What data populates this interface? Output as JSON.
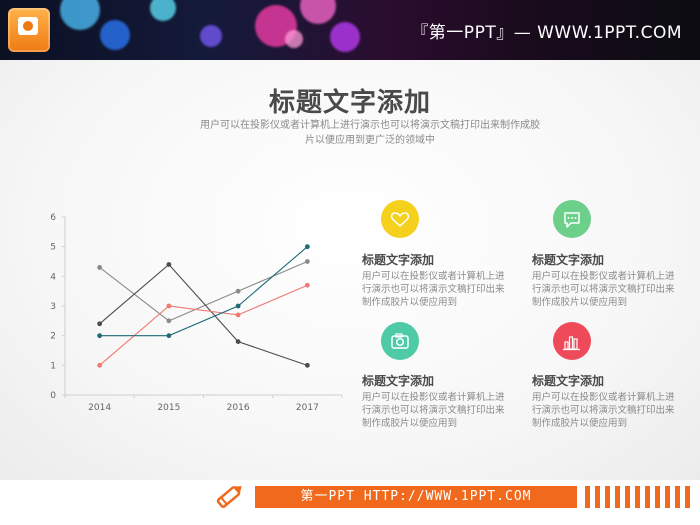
{
  "header": {
    "site_title": "『第一PPT』— WWW.1PPT.COM",
    "logo_icon": "powerpoint-logo-icon"
  },
  "main": {
    "title": "标题文字添加",
    "subtitle": "用户可以在投影仪或者计算机上进行演示也可以将演示文稿打印出来制作成胶片以便应用到更广泛的领域中"
  },
  "chart_data": {
    "type": "line",
    "categories": [
      "2014",
      "2015",
      "2016",
      "2017"
    ],
    "ylim": [
      0,
      6
    ],
    "yticks": [
      "0",
      "1",
      "2",
      "3",
      "4",
      "5",
      "6"
    ],
    "grid": false,
    "legend": "none",
    "series": [
      {
        "color": "#8a8a8a",
        "values": [
          4.3,
          2.5,
          3.5,
          4.5
        ]
      },
      {
        "color": "#4d4d4d",
        "values": [
          2.4,
          4.4,
          1.8,
          1.0
        ]
      },
      {
        "color": "#f07a72",
        "values": [
          1.0,
          3.0,
          2.7,
          3.7
        ]
      },
      {
        "color": "#1f6a78",
        "values": [
          2.0,
          2.0,
          3.0,
          5.0
        ]
      }
    ]
  },
  "features": [
    {
      "icon": "heart-icon",
      "color": "#f5d11e",
      "title": "标题文字添加",
      "desc": "用户可以在投影仪或者计算机上进行演示也可以将演示文稿打印出来制作成胶片以便应用到"
    },
    {
      "icon": "chat-bubble-icon",
      "color": "#6ccf8a",
      "title": "标题文字添加",
      "desc": "用户可以在投影仪或者计算机上进行演示也可以将演示文稿打印出来制作成胶片以便应用到"
    },
    {
      "icon": "camera-icon",
      "color": "#4ecba6",
      "title": "标题文字添加",
      "desc": "用户可以在投影仪或者计算机上进行演示也可以将演示文稿打印出来制作成胶片以便应用到"
    },
    {
      "icon": "bar-chart-icon",
      "color": "#ef4a5a",
      "title": "标题文字添加",
      "desc": "用户可以在投影仪或者计算机上进行演示也可以将演示文稿打印出来制作成胶片以便应用到"
    }
  ],
  "footer": {
    "text": "第一PPT HTTP://WWW.1PPT.COM",
    "accent": "#f0691c"
  }
}
